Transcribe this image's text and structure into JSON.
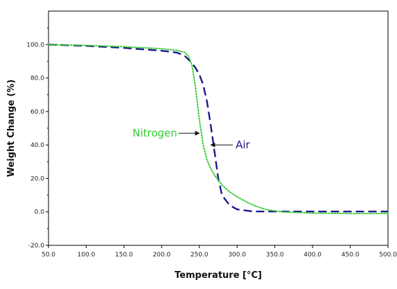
{
  "chart_data": {
    "type": "line",
    "xlabel": "Temperature [°C]",
    "ylabel": "Weight Change (%)",
    "xlim": [
      50,
      500
    ],
    "ylim": [
      -20,
      120
    ],
    "x_ticks": [
      "50.0",
      "100.0",
      "150.0",
      "200.0",
      "250.0",
      "300.0",
      "350.0",
      "400.0",
      "450.0",
      "500.0"
    ],
    "y_ticks": [
      "-20.0",
      "0.0",
      "20.0",
      "40.0",
      "60.0",
      "80.0",
      "100.0"
    ],
    "grid": false,
    "series": [
      {
        "name": "Air",
        "color": "#1a1a8c",
        "style": "dashed",
        "x": [
          50,
          100,
          150,
          200,
          220,
          230,
          240,
          245,
          250,
          255,
          260,
          265,
          270,
          275,
          280,
          290,
          300,
          320,
          340,
          360,
          400,
          450,
          500
        ],
        "y": [
          100,
          99.2,
          98,
          96.3,
          95.2,
          93.5,
          89,
          86,
          82,
          76,
          66,
          52,
          36,
          20,
          10,
          4,
          1.5,
          0.3,
          0.2,
          0.2,
          0.2,
          0.2,
          0.2
        ]
      },
      {
        "name": "Nitrogen",
        "color": "#33cc33",
        "style": "dotted",
        "x": [
          50,
          100,
          150,
          200,
          220,
          230,
          235,
          240,
          245,
          250,
          255,
          260,
          265,
          270,
          280,
          290,
          300,
          310,
          320,
          330,
          340,
          360,
          400,
          450,
          500
        ],
        "y": [
          100,
          99.5,
          98.7,
          97.5,
          96.5,
          95.5,
          93.5,
          88,
          74,
          55,
          40,
          31,
          26,
          22,
          16,
          12,
          9,
          6.5,
          4.3,
          2.6,
          1.2,
          0,
          -0.8,
          -1,
          -1
        ]
      }
    ],
    "annotations": [
      {
        "text": "Nitrogen",
        "color": "#33cc33",
        "arrow_to": [
          250,
          47
        ]
      },
      {
        "text": "Air",
        "color": "#1a1a8c",
        "arrow_to": [
          265,
          40
        ]
      }
    ]
  }
}
